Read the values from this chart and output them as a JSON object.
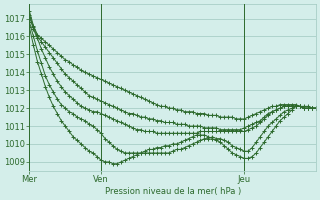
{
  "background_color": "#d4eeea",
  "plot_bg_color": "#d4eeea",
  "grid_color": "#a0c8c0",
  "line_color": "#2d6a2d",
  "marker_color": "#2d6a2d",
  "xlabel": "Pression niveau de la mer( hPa )",
  "ylim": [
    1008.5,
    1017.8
  ],
  "yticks": [
    1009,
    1010,
    1011,
    1012,
    1013,
    1014,
    1015,
    1016,
    1017
  ],
  "xtick_labels": [
    "Mer",
    "Ven",
    "Jeu"
  ],
  "xtick_positions": [
    0,
    18,
    54
  ],
  "total_points": 73,
  "series": [
    [
      1017.4,
      1016.6,
      1016.1,
      1015.9,
      1015.7,
      1015.5,
      1015.3,
      1015.1,
      1014.9,
      1014.7,
      1014.6,
      1014.4,
      1014.3,
      1014.1,
      1014.0,
      1013.9,
      1013.8,
      1013.7,
      1013.6,
      1013.5,
      1013.4,
      1013.3,
      1013.2,
      1013.1,
      1013.0,
      1012.9,
      1012.8,
      1012.7,
      1012.6,
      1012.5,
      1012.4,
      1012.3,
      1012.2,
      1012.1,
      1012.1,
      1012.0,
      1012.0,
      1011.9,
      1011.9,
      1011.8,
      1011.8,
      1011.8,
      1011.7,
      1011.7,
      1011.7,
      1011.6,
      1011.6,
      1011.6,
      1011.5,
      1011.5,
      1011.5,
      1011.5,
      1011.4,
      1011.4,
      1011.4,
      1011.5,
      1011.6,
      1011.7,
      1011.8,
      1011.9,
      1012.0,
      1012.1,
      1012.1,
      1012.2,
      1012.2,
      1012.2,
      1012.2,
      1012.2,
      1012.1,
      1012.1,
      1012.1,
      1012.0,
      1012.0
    ],
    [
      1017.2,
      1016.5,
      1016.0,
      1015.7,
      1015.4,
      1015.1,
      1014.8,
      1014.5,
      1014.2,
      1013.9,
      1013.7,
      1013.5,
      1013.3,
      1013.1,
      1012.9,
      1012.7,
      1012.6,
      1012.5,
      1012.4,
      1012.3,
      1012.2,
      1012.1,
      1012.0,
      1011.9,
      1011.8,
      1011.7,
      1011.7,
      1011.6,
      1011.5,
      1011.5,
      1011.4,
      1011.4,
      1011.3,
      1011.3,
      1011.2,
      1011.2,
      1011.2,
      1011.1,
      1011.1,
      1011.1,
      1011.0,
      1011.0,
      1011.0,
      1011.0,
      1010.9,
      1010.9,
      1010.9,
      1010.9,
      1010.8,
      1010.8,
      1010.8,
      1010.8,
      1010.8,
      1010.8,
      1010.9,
      1011.0,
      1011.1,
      1011.2,
      1011.3,
      1011.5,
      1011.7,
      1011.8,
      1011.9,
      1012.0,
      1012.1,
      1012.1,
      1012.1,
      1012.1,
      1012.1,
      1012.0,
      1012.0,
      1012.0,
      1012.0
    ],
    [
      1017.1,
      1016.4,
      1015.9,
      1015.3,
      1014.8,
      1014.3,
      1013.9,
      1013.5,
      1013.2,
      1012.9,
      1012.7,
      1012.5,
      1012.3,
      1012.1,
      1012.0,
      1011.9,
      1011.8,
      1011.8,
      1011.7,
      1011.6,
      1011.5,
      1011.4,
      1011.3,
      1011.2,
      1011.1,
      1011.0,
      1010.9,
      1010.8,
      1010.8,
      1010.7,
      1010.7,
      1010.7,
      1010.6,
      1010.6,
      1010.6,
      1010.6,
      1010.6,
      1010.6,
      1010.6,
      1010.6,
      1010.6,
      1010.6,
      1010.6,
      1010.7,
      1010.7,
      1010.7,
      1010.7,
      1010.7,
      1010.7,
      1010.7,
      1010.7,
      1010.7,
      1010.7,
      1010.7,
      1010.7,
      1010.8,
      1010.9,
      1011.0,
      1011.2,
      1011.4,
      1011.6,
      1011.8,
      1011.9,
      1012.0,
      1012.1,
      1012.1,
      1012.1,
      1012.1,
      1012.1,
      1012.0,
      1012.0,
      1012.0,
      1012.0
    ],
    [
      1016.8,
      1016.0,
      1015.2,
      1014.5,
      1013.8,
      1013.3,
      1012.9,
      1012.5,
      1012.2,
      1012.0,
      1011.8,
      1011.7,
      1011.5,
      1011.4,
      1011.3,
      1011.1,
      1011.0,
      1010.8,
      1010.6,
      1010.3,
      1010.1,
      1009.9,
      1009.7,
      1009.6,
      1009.5,
      1009.5,
      1009.5,
      1009.5,
      1009.5,
      1009.5,
      1009.5,
      1009.5,
      1009.5,
      1009.5,
      1009.5,
      1009.5,
      1009.6,
      1009.7,
      1009.7,
      1009.8,
      1009.9,
      1010.0,
      1010.1,
      1010.2,
      1010.3,
      1010.3,
      1010.4,
      1010.3,
      1010.3,
      1010.2,
      1010.1,
      1009.9,
      1009.8,
      1009.7,
      1009.6,
      1009.6,
      1009.8,
      1010.1,
      1010.4,
      1010.7,
      1011.0,
      1011.2,
      1011.4,
      1011.6,
      1011.8,
      1011.9,
      1012.0,
      1012.1,
      1012.1,
      1012.0,
      1012.0,
      1012.0,
      1012.0
    ],
    [
      1016.5,
      1015.5,
      1014.6,
      1013.9,
      1013.2,
      1012.6,
      1012.1,
      1011.7,
      1011.3,
      1011.0,
      1010.7,
      1010.4,
      1010.2,
      1010.0,
      1009.8,
      1009.6,
      1009.5,
      1009.3,
      1009.1,
      1009.0,
      1009.0,
      1008.9,
      1008.9,
      1009.0,
      1009.1,
      1009.2,
      1009.3,
      1009.4,
      1009.5,
      1009.6,
      1009.7,
      1009.7,
      1009.8,
      1009.8,
      1009.9,
      1009.9,
      1010.0,
      1010.0,
      1010.1,
      1010.2,
      1010.3,
      1010.4,
      1010.5,
      1010.5,
      1010.5,
      1010.4,
      1010.3,
      1010.2,
      1010.1,
      1009.9,
      1009.7,
      1009.5,
      1009.4,
      1009.3,
      1009.2,
      1009.2,
      1009.3,
      1009.5,
      1009.8,
      1010.1,
      1010.4,
      1010.7,
      1011.0,
      1011.3,
      1011.5,
      1011.7,
      1011.9,
      1012.1,
      1012.1,
      1012.0,
      1012.0,
      1012.0,
      1012.0
    ]
  ]
}
